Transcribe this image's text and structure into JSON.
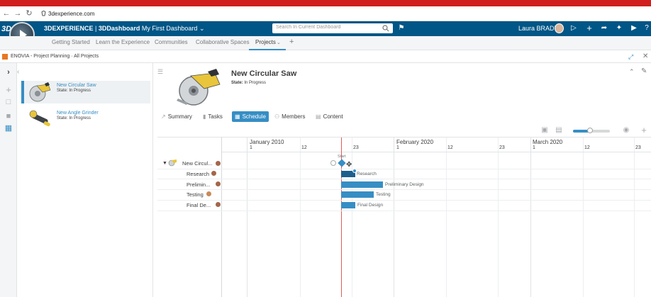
{
  "browser": {
    "url": "3dexperience.com",
    "nav": {
      "back_icon": "arrow-left-icon",
      "forward_icon": "arrow-right-icon",
      "reload_icon": "reload-icon"
    }
  },
  "topbar": {
    "brand": "3DEXPERIENCE",
    "sep": " | ",
    "app": "3DDashboard",
    "dashboard": "My First Dashboard",
    "search_placeholder": "Search In Current Dashboard",
    "user": "Laura BRADY",
    "icons": [
      "search-icon",
      "tag-icon",
      "share-icon",
      "add-icon",
      "forward-icon",
      "network-icon",
      "communication-icon",
      "help-icon"
    ]
  },
  "dashboard_tabs": [
    {
      "label": "Getting Started"
    },
    {
      "label": "Learn the Experience"
    },
    {
      "label": "Communities"
    },
    {
      "label": "Collaborative Spaces"
    },
    {
      "label": "Projects"
    },
    {
      "label": "+"
    }
  ],
  "app_header": {
    "title": "ENOVIA - Project Planning · All Projects"
  },
  "projects": [
    {
      "name": "New Circular Saw",
      "state": "State: In Progress",
      "selected": true
    },
    {
      "name": "New Angle Grinder",
      "state": "State: In Progress",
      "selected": false
    }
  ],
  "detail": {
    "title": "New Circular Saw",
    "state_label": "State:",
    "state_value": "In Progress"
  },
  "subtabs": [
    {
      "label": "Summary",
      "icon": "chart-icon"
    },
    {
      "label": "Tasks",
      "icon": "trash-icon"
    },
    {
      "label": "Schedule",
      "icon": "calendar-icon",
      "active": true
    },
    {
      "label": "Members",
      "icon": "members-icon"
    },
    {
      "label": "Content",
      "icon": "document-icon"
    }
  ],
  "timeline": {
    "months": [
      {
        "label": "January 2010",
        "days": [
          "1",
          "12",
          "23"
        ]
      },
      {
        "label": "February 2020",
        "days": [
          "1",
          "12",
          "23"
        ]
      },
      {
        "label": "March 2020",
        "days": [
          "1",
          "12",
          "23"
        ]
      }
    ],
    "start_label": "Start"
  },
  "tasks": [
    {
      "name": "New Circul...",
      "type": "project"
    },
    {
      "name": "Research",
      "bar_label": "Research"
    },
    {
      "name": "Prelimin...",
      "bar_label": "Preliminary Design"
    },
    {
      "name": "Testing",
      "bar_label": "Testing"
    },
    {
      "name": "Final De...",
      "bar_label": "Final Design"
    }
  ],
  "colors": {
    "accent": "#368ec4",
    "topbar": "#005686",
    "today_line": "#e35a5a",
    "browser_red": "#d11e1e"
  }
}
